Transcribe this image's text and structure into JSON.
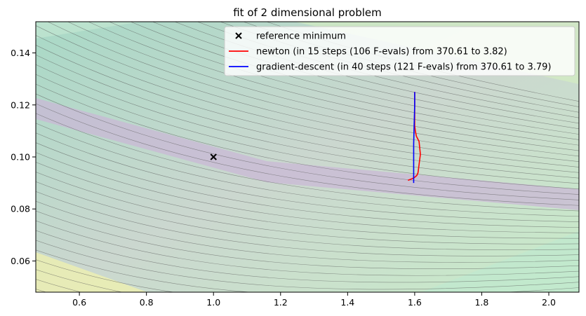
{
  "chart_data": {
    "type": "line",
    "title": "fit of 2 dimensional problem",
    "xlabel": "",
    "ylabel": "",
    "xlim": [
      0.47,
      2.09
    ],
    "ylim": [
      0.048,
      0.152
    ],
    "x_ticks": [
      0.6,
      0.8,
      1.0,
      1.2,
      1.4,
      1.6,
      1.8,
      2.0
    ],
    "x_tick_labels": [
      "0.6",
      "0.8",
      "1.0",
      "1.2",
      "1.4",
      "1.6",
      "1.8",
      "2.0"
    ],
    "y_ticks": [
      0.06,
      0.08,
      0.1,
      0.12,
      0.14
    ],
    "y_tick_labels": [
      "0.06",
      "0.08",
      "0.10",
      "0.12",
      "0.14"
    ],
    "grid": false,
    "legend_position": "top-right",
    "background": "filled contour of the objective function with thin grey contour lines; minimum valley runs from upper-left to lower-right",
    "reference_minimum": {
      "name": "reference minimum",
      "x": 1.0,
      "y": 0.1,
      "marker": "x",
      "color": "#000000"
    },
    "series": [
      {
        "name": "newton (in 15 steps (106 F-evals) from 370.61 to 3.82)",
        "color": "#ff0000",
        "x": [
          1.6,
          1.6,
          1.6,
          1.6,
          1.602,
          1.605,
          1.613,
          1.617,
          1.613,
          1.61,
          1.607,
          1.603,
          1.598,
          1.59,
          1.58
        ],
        "y": [
          0.125,
          0.12,
          0.115,
          0.112,
          0.11,
          0.108,
          0.106,
          0.101,
          0.097,
          0.094,
          0.093,
          0.0925,
          0.092,
          0.0915,
          0.091
        ]
      },
      {
        "name": "gradient-descent (in 40 steps (121 F-evals) from 370.61 to 3.79)",
        "color": "#0000ff",
        "x": [
          1.6,
          1.6,
          1.599,
          1.598,
          1.597,
          1.597,
          1.597,
          1.597,
          1.597
        ],
        "y": [
          0.125,
          0.12,
          0.115,
          0.11,
          0.105,
          0.1,
          0.095,
          0.092,
          0.09
        ]
      }
    ]
  }
}
